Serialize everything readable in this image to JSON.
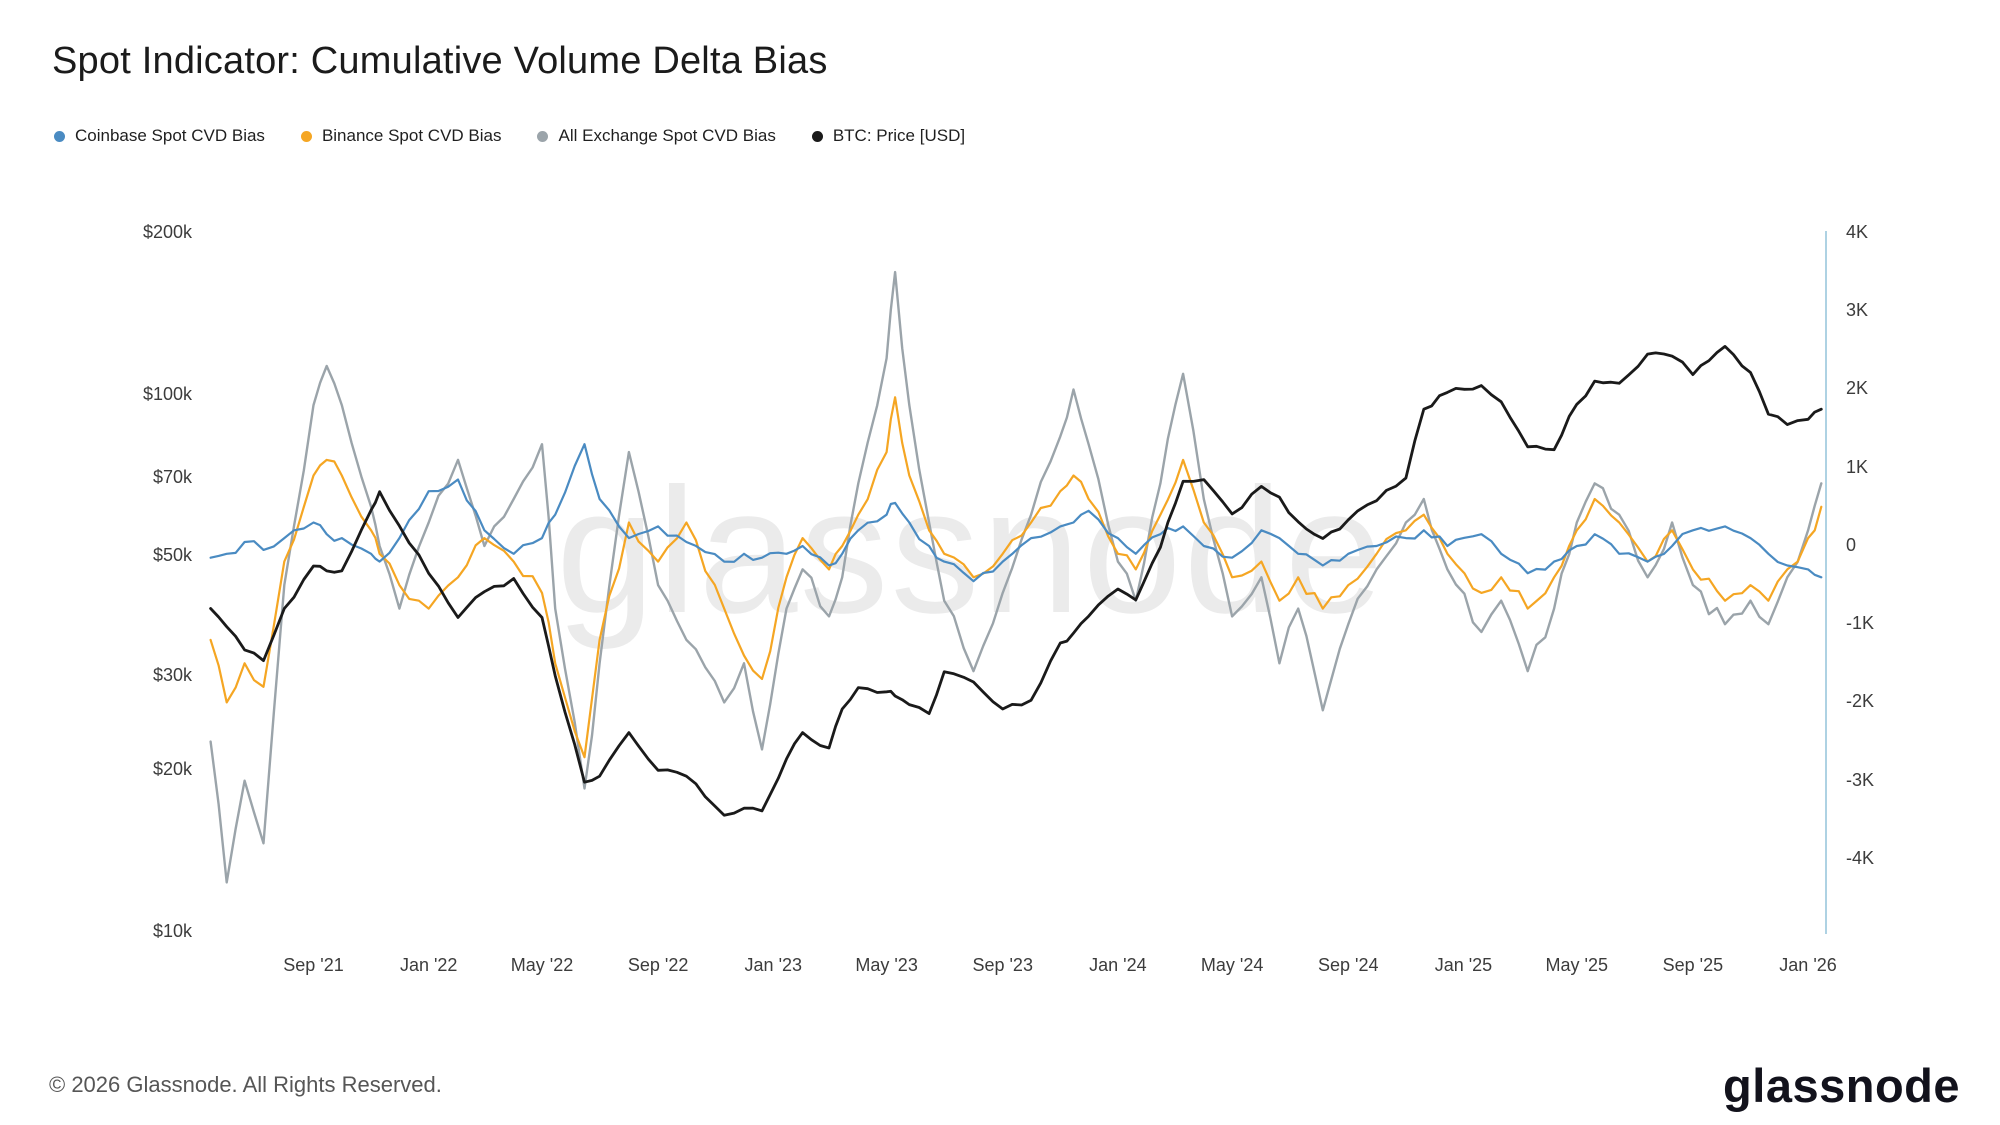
{
  "header": {
    "title": "Spot Indicator: Cumulative Volume Delta Bias"
  },
  "legend": [
    {
      "label": "Coinbase Spot CVD Bias",
      "color": "#4a8bc2"
    },
    {
      "label": "Binance Spot CVD Bias",
      "color": "#f5a623"
    },
    {
      "label": "All Exchange Spot CVD Bias",
      "color": "#9ba4aa"
    },
    {
      "label": "BTC: Price [USD]",
      "color": "#1a1a1a"
    }
  ],
  "watermark": "glassnode",
  "footer": {
    "copyright": "© 2026 Glassnode. All Rights Reserved.",
    "brand": "glassnode"
  },
  "chart_data": {
    "type": "line",
    "title": "Spot Indicator: Cumulative Volume Delta Bias",
    "x_domain": [
      "2021-05-08",
      "2026-01-20"
    ],
    "x_ticks": [
      {
        "label": "Sep '21",
        "date": "2021-09-01"
      },
      {
        "label": "Jan '22",
        "date": "2022-01-01"
      },
      {
        "label": "May '22",
        "date": "2022-05-01"
      },
      {
        "label": "Sep '22",
        "date": "2022-09-01"
      },
      {
        "label": "Jan '23",
        "date": "2023-01-01"
      },
      {
        "label": "May '23",
        "date": "2023-05-01"
      },
      {
        "label": "Sep '23",
        "date": "2023-09-01"
      },
      {
        "label": "Jan '24",
        "date": "2024-01-01"
      },
      {
        "label": "May '24",
        "date": "2024-05-01"
      },
      {
        "label": "Sep '24",
        "date": "2024-09-01"
      },
      {
        "label": "Jan '25",
        "date": "2025-01-01"
      },
      {
        "label": "May '25",
        "date": "2025-05-01"
      },
      {
        "label": "Sep '25",
        "date": "2025-09-01"
      },
      {
        "label": "Jan '26",
        "date": "2026-01-01"
      }
    ],
    "left_axis": {
      "scale": "log",
      "range": [
        10000,
        200000
      ],
      "ticks": [
        {
          "label": "$200k",
          "value": 200000
        },
        {
          "label": "$100k",
          "value": 100000
        },
        {
          "label": "$70k",
          "value": 70000
        },
        {
          "label": "$50k",
          "value": 50000
        },
        {
          "label": "$30k",
          "value": 30000
        },
        {
          "label": "$20k",
          "value": 20000
        },
        {
          "label": "$10k",
          "value": 10000
        }
      ]
    },
    "right_axis": {
      "scale": "linear",
      "range": [
        -4934,
        4000
      ],
      "ticks": [
        {
          "label": "4K",
          "value": 4000
        },
        {
          "label": "3K",
          "value": 3000
        },
        {
          "label": "2K",
          "value": 2000
        },
        {
          "label": "1K",
          "value": 1000
        },
        {
          "label": "0",
          "value": 0
        },
        {
          "label": "-1K",
          "value": -1000
        },
        {
          "label": "-2K",
          "value": -2000
        },
        {
          "label": "-3K",
          "value": -3000
        },
        {
          "label": "-4K",
          "value": -4000
        }
      ]
    },
    "x_dates": [
      "2021-05-15",
      "2021-06-01",
      "2021-06-20",
      "2021-07-10",
      "2021-08-01",
      "2021-09-01",
      "2021-09-15",
      "2021-10-01",
      "2021-11-01",
      "2021-11-10",
      "2021-12-01",
      "2022-01-01",
      "2022-02-01",
      "2022-03-01",
      "2022-04-01",
      "2022-05-01",
      "2022-05-15",
      "2022-06-15",
      "2022-07-01",
      "2022-08-01",
      "2022-09-01",
      "2022-10-01",
      "2022-11-10",
      "2022-12-01",
      "2022-12-20",
      "2023-01-15",
      "2023-02-01",
      "2023-03-01",
      "2023-03-15",
      "2023-04-01",
      "2023-05-01",
      "2023-05-10",
      "2023-05-25",
      "2023-06-15",
      "2023-07-01",
      "2023-08-01",
      "2023-09-01",
      "2023-10-01",
      "2023-11-01",
      "2023-11-15",
      "2023-12-01",
      "2024-01-01",
      "2024-01-20",
      "2024-02-15",
      "2024-03-10",
      "2024-04-01",
      "2024-05-01",
      "2024-06-01",
      "2024-06-20",
      "2024-07-10",
      "2024-08-05",
      "2024-09-01",
      "2024-10-01",
      "2024-11-01",
      "2024-11-20",
      "2024-12-15",
      "2025-01-20",
      "2025-02-10",
      "2025-03-10",
      "2025-04-07",
      "2025-05-01",
      "2025-05-20",
      "2025-06-15",
      "2025-07-15",
      "2025-08-10",
      "2025-09-01",
      "2025-10-05",
      "2025-11-01",
      "2025-11-20",
      "2025-12-10",
      "2026-01-01",
      "2026-01-15"
    ],
    "series": [
      {
        "name": "Coinbase Spot CVD Bias",
        "axis": "right",
        "color": "#4a8bc2",
        "values": [
          -150,
          -100,
          50,
          -50,
          100,
          300,
          150,
          100,
          -100,
          -200,
          100,
          700,
          850,
          200,
          -100,
          100,
          400,
          1300,
          600,
          100,
          250,
          50,
          -200,
          -100,
          -150,
          -100,
          0,
          -250,
          -100,
          200,
          400,
          550,
          300,
          0,
          -200,
          -450,
          -200,
          100,
          250,
          300,
          450,
          100,
          -100,
          150,
          250,
          0,
          -150,
          200,
          100,
          -100,
          -250,
          -100,
          0,
          100,
          200,
          0,
          150,
          -100,
          -350,
          -200,
          0,
          150,
          -100,
          -200,
          0,
          200,
          250,
          100,
          -100,
          -250,
          -300,
          -400
        ]
      },
      {
        "name": "Binance Spot CVD Bias",
        "axis": "right",
        "color": "#f5a623",
        "values": [
          -1200,
          -2000,
          -1500,
          -1800,
          -200,
          900,
          1100,
          900,
          200,
          -100,
          -500,
          -800,
          -400,
          100,
          -200,
          -600,
          -1500,
          -2700,
          -1200,
          300,
          -200,
          300,
          -800,
          -1400,
          -1700,
          -400,
          100,
          -300,
          0,
          400,
          1200,
          1900,
          900,
          200,
          -100,
          -400,
          -100,
          300,
          700,
          900,
          600,
          -100,
          -300,
          400,
          1100,
          300,
          -400,
          -200,
          -700,
          -400,
          -800,
          -500,
          -100,
          200,
          400,
          -100,
          -600,
          -400,
          -800,
          -400,
          200,
          600,
          300,
          -200,
          200,
          -300,
          -700,
          -500,
          -700,
          -300,
          100,
          500
        ]
      },
      {
        "name": "All Exchange Spot CVD Bias",
        "axis": "right",
        "color": "#9ba4aa",
        "values": [
          -2500,
          -4300,
          -3000,
          -3800,
          -500,
          1800,
          2300,
          1800,
          500,
          0,
          -800,
          300,
          1100,
          0,
          600,
          1300,
          -800,
          -3100,
          -1500,
          1200,
          -500,
          -1200,
          -2000,
          -1500,
          -2600,
          -800,
          -300,
          -900,
          -400,
          800,
          2400,
          3500,
          1800,
          300,
          -700,
          -1600,
          -600,
          400,
          1400,
          2000,
          1300,
          -200,
          -700,
          800,
          2200,
          600,
          -900,
          -400,
          -1500,
          -800,
          -2100,
          -1000,
          -300,
          300,
          600,
          -300,
          -1100,
          -700,
          -1600,
          -800,
          300,
          800,
          400,
          -400,
          300,
          -500,
          -1000,
          -700,
          -1000,
          -400,
          200,
          800
        ]
      },
      {
        "name": "BTC: Price [USD]",
        "axis": "left",
        "color": "#1a1a1a",
        "values": [
          40000,
          37000,
          33500,
          32000,
          40000,
          48000,
          47000,
          47000,
          61000,
          66000,
          57000,
          46500,
          38500,
          43000,
          45500,
          38500,
          30000,
          19000,
          19500,
          23500,
          20000,
          19500,
          16500,
          17000,
          16800,
          21000,
          23500,
          22000,
          26000,
          28500,
          28000,
          27500,
          26500,
          25500,
          30500,
          29200,
          26000,
          27000,
          34500,
          36000,
          38700,
          43500,
          41500,
          52000,
          69000,
          69500,
          60000,
          67500,
          64500,
          58000,
          54000,
          58500,
          63500,
          70000,
          94000,
          101000,
          104000,
          97000,
          80000,
          79000,
          96000,
          106000,
          105000,
          119000,
          118000,
          109000,
          123000,
          110000,
          92000,
          88000,
          90000,
          94000
        ]
      }
    ]
  }
}
